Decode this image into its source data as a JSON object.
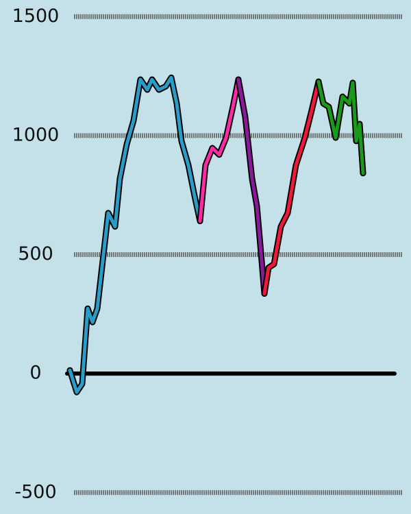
{
  "chart_data": {
    "type": "line",
    "xlim": [
      -100,
      500
    ],
    "ylim": [
      -590,
      1570
    ],
    "yticks": [
      -500,
      0,
      500,
      1000,
      1500
    ],
    "grid": true,
    "zero_line": true,
    "series": [
      {
        "color": "#2a9cc8",
        "x": [
          2,
          12,
          20,
          28,
          35,
          42,
          50,
          58,
          68,
          75,
          85,
          95,
          105,
          115,
          122,
          132,
          142,
          150,
          158,
          165,
          175,
          185,
          192
        ],
        "values": [
          14,
          -78,
          -43,
          273,
          216,
          273,
          474,
          675,
          618,
          819,
          963,
          1063,
          1236,
          1193,
          1236,
          1193,
          1207,
          1244,
          1135,
          977,
          876,
          733,
          641
        ]
      },
      {
        "color": "#ff2aa8",
        "x": [
          192,
          200,
          210,
          220,
          230,
          240,
          248
        ],
        "values": [
          641,
          876,
          948,
          920,
          991,
          1121,
          1236
        ]
      },
      {
        "color": "#8a1a9a",
        "x": [
          248,
          258,
          268,
          275,
          282,
          286
        ],
        "values": [
          1236,
          1078,
          819,
          704,
          474,
          336
        ]
      },
      {
        "color": "#f0183c",
        "x": [
          286,
          292,
          300,
          310,
          320,
          332,
          345,
          355,
          365
        ],
        "values": [
          336,
          445,
          460,
          618,
          675,
          876,
          991,
          1106,
          1227
        ]
      },
      {
        "color": "#1a9a1a",
        "x": [
          365,
          372,
          380,
          390,
          400,
          410,
          415,
          420,
          425,
          430
        ],
        "values": [
          1227,
          1135,
          1121,
          991,
          1164,
          1135,
          1222,
          977,
          1049,
          842
        ]
      }
    ]
  }
}
